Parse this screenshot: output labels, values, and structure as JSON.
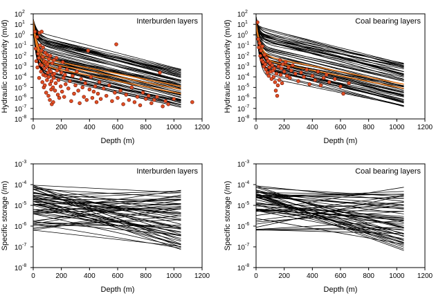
{
  "figure": {
    "panel_titles": [
      "Interburden layers",
      "Coal bearing layers",
      "Interburden layers",
      "Coal bearing layers"
    ]
  },
  "chart_data": [
    {
      "type": "line",
      "title": "Interburden layers",
      "xlabel": "Depth (m)",
      "ylabel": "Hydraulic conductivity (m/d)",
      "xlim": [
        0,
        1200
      ],
      "xticks": [
        "0",
        "200",
        "400",
        "600",
        "800",
        "1000",
        "1200"
      ],
      "yscale": "log",
      "ylim_exponents": [
        -8,
        2
      ],
      "ytick_exponents": [
        "-8",
        "-7",
        "-6",
        "-5",
        "-4",
        "-3",
        "-2",
        "-1",
        "0",
        "1",
        "2"
      ],
      "ytick_base": "10",
      "ensemble": {
        "description": "realisations of decaying conductivity with depth",
        "color": "#000000",
        "depth_max": 1050,
        "n_realisations": 60,
        "surface_log10_range": [
          0.6,
          1.6
        ],
        "deep_log10_at_1050_range": [
          -6.9,
          -3.3
        ],
        "shallow_decay_length_m": 25
      },
      "highlight": {
        "color": "#e87a1e",
        "n_lines": 3,
        "deep_log10_at_1050": [
          -5.6,
          -5.2,
          -4.9
        ]
      },
      "observations": {
        "marker": "circle",
        "fill": "#e14f24",
        "edge": "#7a1a0a",
        "points": [
          [
            12,
            0.3
          ],
          [
            18,
            -1.3
          ],
          [
            22,
            -2.5
          ],
          [
            28,
            -0.2
          ],
          [
            30,
            -3.1
          ],
          [
            35,
            -1.8
          ],
          [
            40,
            -2.2
          ],
          [
            42,
            -4.1
          ],
          [
            45,
            0.2
          ],
          [
            48,
            -1.0
          ],
          [
            50,
            -2.8
          ],
          [
            55,
            -3.5
          ],
          [
            58,
            -1.5
          ],
          [
            60,
            0.3
          ],
          [
            62,
            -2.9
          ],
          [
            65,
            -4.5
          ],
          [
            68,
            -2.1
          ],
          [
            70,
            -1.2
          ],
          [
            72,
            -3.8
          ],
          [
            75,
            -5.0
          ],
          [
            78,
            -2.5
          ],
          [
            80,
            -3.2
          ],
          [
            82,
            -4.8
          ],
          [
            85,
            -1.7
          ],
          [
            88,
            -3.9
          ],
          [
            90,
            -2.6
          ],
          [
            92,
            -5.5
          ],
          [
            95,
            -3.0
          ],
          [
            98,
            -4.3
          ],
          [
            100,
            -1.9
          ],
          [
            102,
            -2.8
          ],
          [
            105,
            -3.6
          ],
          [
            108,
            -5.8
          ],
          [
            110,
            -4.0
          ],
          [
            112,
            -2.3
          ],
          [
            115,
            -3.3
          ],
          [
            118,
            -6.2
          ],
          [
            120,
            -4.7
          ],
          [
            122,
            -2.0
          ],
          [
            125,
            -3.5
          ],
          [
            128,
            -5.2
          ],
          [
            130,
            -4.4
          ],
          [
            132,
            -6.6
          ],
          [
            135,
            -2.7
          ],
          [
            138,
            -3.8
          ],
          [
            140,
            -5.0
          ],
          [
            142,
            -6.4
          ],
          [
            145,
            -4.1
          ],
          [
            148,
            -2.4
          ],
          [
            150,
            -3.7
          ],
          [
            155,
            -5.3
          ],
          [
            160,
            -4.6
          ],
          [
            165,
            -2.2
          ],
          [
            170,
            -3.4
          ],
          [
            175,
            -5.7
          ],
          [
            180,
            -4.3
          ],
          [
            185,
            -6.0
          ],
          [
            190,
            -3.1
          ],
          [
            195,
            -4.9
          ],
          [
            200,
            -3.6
          ],
          [
            205,
            -5.4
          ],
          [
            210,
            -2.6
          ],
          [
            215,
            -4.1
          ],
          [
            220,
            -5.9
          ],
          [
            225,
            -3.8
          ],
          [
            230,
            -4.7
          ],
          [
            240,
            -3.3
          ],
          [
            250,
            -5.1
          ],
          [
            260,
            -4.4
          ],
          [
            270,
            -6.3
          ],
          [
            280,
            -3.9
          ],
          [
            290,
            -5.6
          ],
          [
            300,
            -4.8
          ],
          [
            310,
            -3.5
          ],
          [
            320,
            -5.3
          ],
          [
            330,
            -6.5
          ],
          [
            340,
            -4.2
          ],
          [
            350,
            -5.0
          ],
          [
            360,
            -5.9
          ],
          [
            370,
            -4.6
          ],
          [
            380,
            -6.2
          ],
          [
            390,
            -1.5
          ],
          [
            400,
            -5.2
          ],
          [
            410,
            -4.0
          ],
          [
            420,
            -6.0
          ],
          [
            430,
            -5.4
          ],
          [
            440,
            -4.9
          ],
          [
            450,
            -6.4
          ],
          [
            460,
            -5.6
          ],
          [
            470,
            -4.5
          ],
          [
            480,
            -6.1
          ],
          [
            500,
            -5.1
          ],
          [
            520,
            -5.8
          ],
          [
            540,
            -4.8
          ],
          [
            560,
            -6.3
          ],
          [
            580,
            -5.5
          ],
          [
            590,
            -0.9
          ],
          [
            600,
            -6.0
          ],
          [
            620,
            -5.3
          ],
          [
            640,
            -6.6
          ],
          [
            660,
            -5.7
          ],
          [
            680,
            -6.2
          ],
          [
            700,
            -5.0
          ],
          [
            720,
            -6.4
          ],
          [
            740,
            -5.9
          ],
          [
            760,
            -6.7
          ],
          [
            780,
            -5.5
          ],
          [
            800,
            -6.1
          ],
          [
            820,
            -5.8
          ],
          [
            840,
            -6.5
          ],
          [
            860,
            -6.2
          ],
          [
            880,
            -5.9
          ],
          [
            900,
            -3.6
          ],
          [
            920,
            -6.8
          ],
          [
            940,
            -6.3
          ],
          [
            960,
            -6.6
          ],
          [
            1000,
            -6.1
          ],
          [
            1130,
            -6.4
          ]
        ]
      }
    },
    {
      "type": "line",
      "title": "Coal bearing layers",
      "xlabel": "Depth (m)",
      "ylabel": "Hydraulic conductivity (m/d)",
      "xlim": [
        0,
        1200
      ],
      "xticks": [
        "0",
        "200",
        "400",
        "600",
        "800",
        "1000",
        "1200"
      ],
      "yscale": "log",
      "ylim_exponents": [
        -8,
        2
      ],
      "ytick_exponents": [
        "-8",
        "-7",
        "-6",
        "-5",
        "-4",
        "-3",
        "-2",
        "-1",
        "0",
        "1",
        "2"
      ],
      "ytick_base": "10",
      "ensemble": {
        "description": "realisations of decaying conductivity with depth",
        "color": "#000000",
        "depth_max": 1050,
        "n_realisations": 60,
        "surface_log10_range": [
          0.8,
          1.8
        ],
        "deep_log10_at_1050_range": [
          -6.9,
          -2.6
        ],
        "shallow_decay_length_m": 22
      },
      "highlight": {
        "color": "#e87a1e",
        "n_lines": 2,
        "deep_log10_at_1050": [
          -5.1,
          -4.7
        ]
      },
      "observations": {
        "marker": "circle",
        "fill": "#e14f24",
        "edge": "#7a1a0a",
        "points": [
          [
            10,
            1.2
          ],
          [
            15,
            -0.4
          ],
          [
            20,
            -1.2
          ],
          [
            25,
            -0.8
          ],
          [
            30,
            -2.0
          ],
          [
            35,
            -1.5
          ],
          [
            40,
            -2.4
          ],
          [
            45,
            -1.1
          ],
          [
            50,
            -2.6
          ],
          [
            55,
            -3.0
          ],
          [
            60,
            -1.9
          ],
          [
            65,
            -2.8
          ],
          [
            70,
            -3.3
          ],
          [
            75,
            -2.2
          ],
          [
            80,
            -3.6
          ],
          [
            85,
            -2.5
          ],
          [
            90,
            -3.9
          ],
          [
            95,
            -3.1
          ],
          [
            100,
            -2.7
          ],
          [
            105,
            -3.5
          ],
          [
            110,
            -4.2
          ],
          [
            115,
            -2.9
          ],
          [
            120,
            -3.4
          ],
          [
            125,
            -4.0
          ],
          [
            130,
            -3.2
          ],
          [
            135,
            -4.5
          ],
          [
            140,
            -5.3
          ],
          [
            145,
            -3.7
          ],
          [
            150,
            -5.8
          ],
          [
            155,
            -4.8
          ],
          [
            160,
            -3.0
          ],
          [
            165,
            -4.3
          ],
          [
            170,
            -2.4
          ],
          [
            175,
            -3.8
          ],
          [
            180,
            -3.2
          ],
          [
            185,
            -4.6
          ],
          [
            190,
            -2.8
          ],
          [
            200,
            -3.5
          ],
          [
            210,
            -2.6
          ],
          [
            220,
            -3.9
          ],
          [
            230,
            -3.1
          ],
          [
            240,
            -4.1
          ],
          [
            250,
            -3.4
          ],
          [
            260,
            -2.9
          ],
          [
            280,
            -3.7
          ],
          [
            300,
            -4.4
          ],
          [
            320,
            -3.6
          ],
          [
            340,
            -4.0
          ],
          [
            360,
            -3.3
          ],
          [
            380,
            -4.7
          ],
          [
            400,
            -3.9
          ],
          [
            420,
            -4.3
          ],
          [
            440,
            -3.5
          ],
          [
            460,
            -4.8
          ],
          [
            480,
            -4.1
          ],
          [
            500,
            -3.8
          ],
          [
            520,
            -4.5
          ],
          [
            560,
            -4.2
          ],
          [
            600,
            -4.9
          ],
          [
            620,
            -5.6
          ],
          [
            660,
            -4.6
          ]
        ]
      }
    },
    {
      "type": "line",
      "title": "Interburden layers",
      "xlabel": "Depth (m)",
      "ylabel": "Specific storage (/m)",
      "xlim": [
        0,
        1200
      ],
      "xticks": [
        "0",
        "200",
        "400",
        "600",
        "800",
        "1000",
        "1200"
      ],
      "yscale": "log",
      "ylim_exponents": [
        -8,
        -3
      ],
      "ytick_exponents": [
        "-8",
        "-7",
        "-6",
        "-5",
        "-4",
        "-3"
      ],
      "ytick_base": "10",
      "ensemble": {
        "description": "realisations of specific storage vs depth",
        "color": "#000000",
        "depth_max": 1050,
        "n_realisations": 55,
        "surface_log10_range": [
          -6.2,
          -4.0
        ],
        "deep_log10_at_1050_range": [
          -7.15,
          -4.25
        ]
      }
    },
    {
      "type": "line",
      "title": "Coal bearing layers",
      "xlabel": "Depth (m)",
      "ylabel": "Specific storage (/m)",
      "xlim": [
        0,
        1200
      ],
      "xticks": [
        "0",
        "200",
        "400",
        "600",
        "800",
        "1000",
        "1200"
      ],
      "yscale": "log",
      "ylim_exponents": [
        -8,
        -3
      ],
      "ytick_exponents": [
        "-8",
        "-7",
        "-6",
        "-5",
        "-4",
        "-3"
      ],
      "ytick_base": "10",
      "ensemble": {
        "description": "realisations of specific storage vs depth",
        "color": "#000000",
        "depth_max": 1050,
        "n_realisations": 55,
        "surface_log10_range": [
          -6.2,
          -4.0
        ],
        "deep_log10_at_1050_range": [
          -7.15,
          -4.25
        ]
      }
    }
  ]
}
